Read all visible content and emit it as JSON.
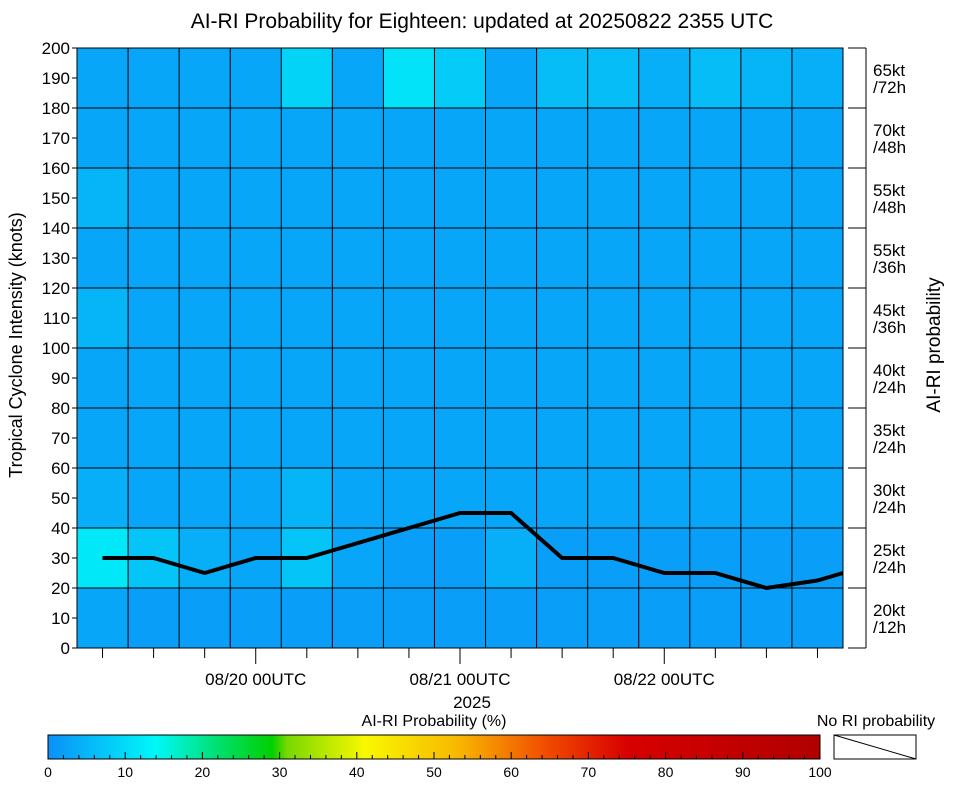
{
  "chart_data": {
    "type": "heatmap",
    "title": "AI-RI Probability for Eighteen: updated at 20250822 2355 UTC",
    "ylabel": "Tropical Cyclone Intensity (knots)",
    "ylabel_right": "AI-RI probability",
    "xlabel": "2025",
    "ylim": [
      0,
      200
    ],
    "y_ticks": [
      0,
      10,
      20,
      30,
      40,
      50,
      60,
      70,
      80,
      90,
      100,
      110,
      120,
      130,
      140,
      150,
      160,
      170,
      180,
      190,
      200
    ],
    "x_tick_labels": [
      {
        "label": "08/20 00UTC",
        "col": 3
      },
      {
        "label": "08/21 00UTC",
        "col": 7
      },
      {
        "label": "08/22 00UTC",
        "col": 11
      }
    ],
    "n_columns": 15,
    "row_bands": [
      {
        "from": 0,
        "to": 20,
        "label_line1": "20kt",
        "label_line2": "/12h"
      },
      {
        "from": 20,
        "to": 40,
        "label_line1": "25kt",
        "label_line2": "/24h"
      },
      {
        "from": 40,
        "to": 60,
        "label_line1": "30kt",
        "label_line2": "/24h"
      },
      {
        "from": 60,
        "to": 80,
        "label_line1": "35kt",
        "label_line2": "/24h"
      },
      {
        "from": 80,
        "to": 100,
        "label_line1": "40kt",
        "label_line2": "/24h"
      },
      {
        "from": 100,
        "to": 120,
        "label_line1": "45kt",
        "label_line2": "/36h"
      },
      {
        "from": 120,
        "to": 140,
        "label_line1": "55kt",
        "label_line2": "/36h"
      },
      {
        "from": 140,
        "to": 160,
        "label_line1": "55kt",
        "label_line2": "/48h"
      },
      {
        "from": 160,
        "to": 180,
        "label_line1": "70kt",
        "label_line2": "/48h"
      },
      {
        "from": 180,
        "to": 200,
        "label_line1": "65kt",
        "label_line2": "/72h"
      }
    ],
    "probabilities": [
      [
        3,
        2,
        2,
        2,
        2,
        2,
        2,
        2,
        2,
        2,
        2,
        2,
        2,
        2,
        2
      ],
      [
        12,
        7,
        4,
        3,
        7,
        3,
        2,
        2,
        4,
        2,
        2,
        2,
        2,
        2,
        2
      ],
      [
        4,
        3,
        3,
        3,
        5,
        3,
        3,
        3,
        3,
        3,
        3,
        3,
        3,
        3,
        3
      ],
      [
        3,
        3,
        3,
        3,
        3,
        3,
        3,
        3,
        3,
        3,
        3,
        3,
        3,
        3,
        3
      ],
      [
        3,
        3,
        3,
        3,
        3,
        3,
        3,
        3,
        3,
        3,
        3,
        3,
        3,
        3,
        3
      ],
      [
        5,
        3,
        3,
        3,
        3,
        3,
        3,
        3,
        3,
        3,
        3,
        3,
        3,
        3,
        3
      ],
      [
        3,
        3,
        3,
        3,
        3,
        3,
        3,
        3,
        3,
        3,
        3,
        3,
        3,
        3,
        3
      ],
      [
        5,
        3,
        3,
        3,
        3,
        3,
        3,
        3,
        3,
        3,
        3,
        3,
        3,
        3,
        3
      ],
      [
        3,
        3,
        3,
        3,
        3,
        3,
        3,
        3,
        3,
        3,
        3,
        3,
        3,
        3,
        3
      ],
      [
        3,
        3,
        3,
        3,
        9,
        3,
        11,
        8,
        3,
        6,
        6,
        4,
        6,
        5,
        4
      ]
    ],
    "intensity_track": {
      "x": [
        0.5,
        1.5,
        2.5,
        3.5,
        4.5,
        5.5,
        6.5,
        7.5,
        8.5,
        9.5,
        10.5,
        11.5,
        12.5,
        13.5,
        14.5,
        15.0
      ],
      "y": [
        30,
        30,
        25,
        30,
        30,
        35,
        40,
        45,
        45,
        30,
        30,
        25,
        25,
        20,
        22.5,
        25
      ]
    },
    "colorbar": {
      "label": "AI-RI Probability (%)",
      "range": [
        0,
        100
      ],
      "ticks": [
        0,
        10,
        20,
        30,
        40,
        50,
        60,
        70,
        80,
        90,
        100
      ],
      "stops": [
        {
          "v": 0,
          "c": "#0a90f8"
        },
        {
          "v": 14,
          "c": "#00f8f8"
        },
        {
          "v": 22,
          "c": "#00e070"
        },
        {
          "v": 29,
          "c": "#00d000"
        },
        {
          "v": 31,
          "c": "#78d800"
        },
        {
          "v": 41,
          "c": "#f8f800"
        },
        {
          "v": 53,
          "c": "#f8b800"
        },
        {
          "v": 65,
          "c": "#f04800"
        },
        {
          "v": 75,
          "c": "#d80000"
        },
        {
          "v": 100,
          "c": "#b00000"
        }
      ]
    },
    "no_ri_label": "No RI probability"
  }
}
